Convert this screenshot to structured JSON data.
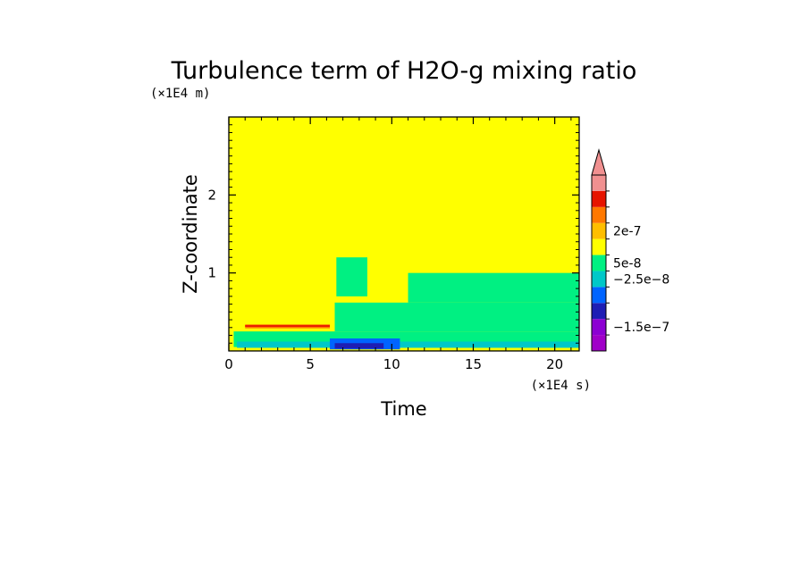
{
  "chart_data": {
    "type": "heatmap",
    "title": "Turbulence term of H2O-g mixing ratio",
    "xlabel": "Time",
    "ylabel": "Z-coordinate",
    "x_unit": "(×1E4 s)",
    "y_unit": "(×1E4 m)",
    "xlim": [
      0,
      21.5
    ],
    "ylim": [
      0,
      3
    ],
    "x_ticks": [
      0,
      5,
      10,
      15,
      20
    ],
    "x_tick_labels": [
      "0",
      "5",
      "10",
      "15",
      "20"
    ],
    "y_ticks": [
      1,
      2
    ],
    "y_tick_labels": [
      "1",
      "2"
    ],
    "background_color": "#ffff00",
    "colorbar": {
      "colors": [
        "#a000c8",
        "#8c00d2",
        "#1e1eb4",
        "#0064ff",
        "#00c8c8",
        "#00f082",
        "#ffff00",
        "#ffbe00",
        "#ff7800",
        "#e61400",
        "#f09090"
      ],
      "extend": "max",
      "labels": [
        {
          "text": "2e-7",
          "level": 7.5
        },
        {
          "text": "5e-8",
          "level": 5.5
        },
        {
          "text": "−2.5e−8",
          "level": 4.5
        },
        {
          "text": "−1.5e−7",
          "level": 1.5
        }
      ]
    },
    "regions": [
      {
        "color": "#00f082",
        "x": [
          0.3,
          21.5
        ],
        "y": [
          0.05,
          0.25
        ]
      },
      {
        "color": "#00f082",
        "x": [
          6.5,
          21.5
        ],
        "y": [
          0.25,
          0.62
        ]
      },
      {
        "color": "#00f082",
        "x": [
          11,
          21.5
        ],
        "y": [
          0.62,
          1.0
        ]
      },
      {
        "color": "#00f082",
        "x": [
          6.6,
          8.5
        ],
        "y": [
          0.7,
          1.2
        ]
      },
      {
        "color": "#ff7800",
        "x": [
          1.0,
          6.2
        ],
        "y": [
          0.29,
          0.34
        ]
      },
      {
        "color": "#e61400",
        "x": [
          1.0,
          6.2
        ],
        "y": [
          0.31,
          0.33
        ]
      },
      {
        "color": "#00c8c8",
        "x": [
          0.5,
          21.5
        ],
        "y": [
          0.04,
          0.12
        ]
      },
      {
        "color": "#0064ff",
        "x": [
          6.2,
          10.5
        ],
        "y": [
          0.02,
          0.16
        ]
      },
      {
        "color": "#1e1eb4",
        "x": [
          6.5,
          9.5
        ],
        "y": [
          0.03,
          0.1
        ]
      }
    ]
  }
}
